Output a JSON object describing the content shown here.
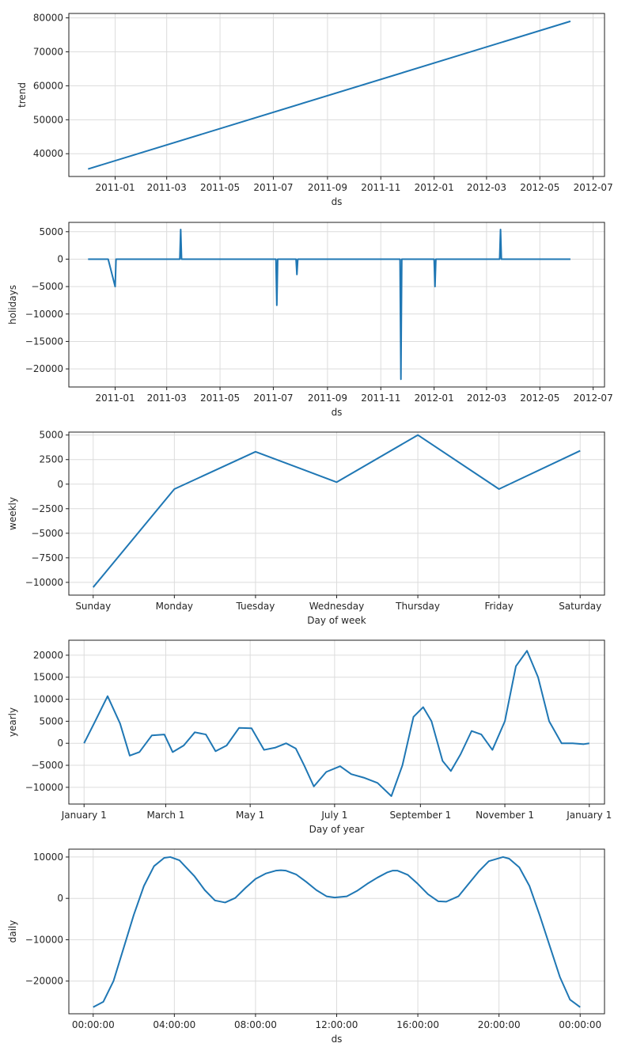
{
  "chart_data": [
    {
      "type": "line",
      "ylabel": "trend",
      "xlabel": "ds",
      "x_tick_labels": [
        "2011-01",
        "2011-03",
        "2011-05",
        "2011-07",
        "2011-09",
        "2011-11",
        "2012-01",
        "2012-03",
        "2012-05",
        "2012-07"
      ],
      "xlim": [
        "2010-11-09",
        "2012-07-14"
      ],
      "y_ticks": [
        40000,
        50000,
        60000,
        70000,
        80000
      ],
      "ylim": [
        33300,
        81300
      ],
      "series": [
        {
          "x": [
            "2010-12-01",
            "2012-06-05"
          ],
          "values": [
            35500,
            79000
          ]
        }
      ]
    },
    {
      "type": "line",
      "ylabel": "holidays",
      "xlabel": "ds",
      "x_tick_labels": [
        "2011-01",
        "2011-03",
        "2011-05",
        "2011-07",
        "2011-09",
        "2011-11",
        "2012-01",
        "2012-03",
        "2012-05",
        "2012-07"
      ],
      "xlim": [
        "2010-11-09",
        "2012-07-14"
      ],
      "y_ticks": [
        5000,
        0,
        -5000,
        -10000,
        -15000,
        -20000
      ],
      "ylim": [
        -23300,
        6700
      ],
      "series": [
        {
          "x": [
            "2010-12-01",
            "2010-12-24",
            "2011-01-01",
            "2011-01-02",
            "2011-03-16",
            "2011-03-17",
            "2011-03-18",
            "2011-07-04",
            "2011-07-05",
            "2011-07-06",
            "2011-07-27",
            "2011-07-28",
            "2011-07-29",
            "2011-11-23",
            "2011-11-24",
            "2011-11-25",
            "2012-01-01",
            "2012-01-02",
            "2012-01-03",
            "2012-03-16",
            "2012-03-17",
            "2012-03-18",
            "2012-06-05"
          ],
          "values": [
            0,
            0,
            -5000,
            0,
            0,
            5400,
            0,
            0,
            -8400,
            0,
            0,
            -2800,
            0,
            0,
            -21900,
            0,
            0,
            -5000,
            0,
            0,
            5400,
            0,
            0
          ]
        }
      ]
    },
    {
      "type": "line",
      "ylabel": "weekly",
      "xlabel": "Day of week",
      "categories": [
        "Sunday",
        "Monday",
        "Tuesday",
        "Wednesday",
        "Thursday",
        "Friday",
        "Saturday"
      ],
      "y_ticks": [
        5000,
        2500,
        0,
        -2500,
        -5000,
        -7500,
        -10000
      ],
      "ylim": [
        -11300,
        5300
      ],
      "series": [
        {
          "values": [
            -10500,
            -500,
            3300,
            200,
            5000,
            -500,
            3400
          ]
        }
      ]
    },
    {
      "type": "line",
      "ylabel": "yearly",
      "xlabel": "Day of year",
      "x_tick_labels": [
        "January 1",
        "March 1",
        "May 1",
        "July 1",
        "September 1",
        "November 1",
        "January 1"
      ],
      "xlim": [
        -11,
        376
      ],
      "y_ticks": [
        20000,
        15000,
        10000,
        5000,
        0,
        -5000,
        -10000
      ],
      "ylim": [
        -13800,
        23400
      ],
      "series": [
        {
          "x": [
            0,
            8,
            17,
            26,
            33,
            40,
            49,
            58,
            64,
            72,
            80,
            88,
            95,
            103,
            112,
            121,
            130,
            138,
            146,
            153,
            159,
            166,
            175,
            185,
            193,
            202,
            212,
            222,
            230,
            238,
            245,
            251,
            259,
            265,
            272,
            280,
            287,
            295,
            304,
            312,
            320,
            328,
            336,
            345,
            353,
            361,
            365
          ],
          "values": [
            0,
            5000,
            10700,
            4500,
            -2800,
            -2000,
            1800,
            2000,
            -2000,
            -500,
            2500,
            2000,
            -1800,
            -500,
            3500,
            3400,
            -1500,
            -1000,
            0,
            -1200,
            -5000,
            -9800,
            -6500,
            -5200,
            -7000,
            -7800,
            -9000,
            -12000,
            -5000,
            6000,
            8200,
            5000,
            -4000,
            -6300,
            -2500,
            2800,
            2000,
            -1500,
            5000,
            17500,
            21000,
            15000,
            5000,
            0,
            0,
            -200,
            0
          ]
        }
      ]
    },
    {
      "type": "line",
      "ylabel": "daily",
      "xlabel": "ds",
      "x_tick_labels": [
        "00:00:00",
        "04:00:00",
        "08:00:00",
        "12:00:00",
        "16:00:00",
        "20:00:00",
        "00:00:00"
      ],
      "xlim": [
        -1.2,
        25.2
      ],
      "y_ticks": [
        10000,
        0,
        -10000,
        -20000
      ],
      "ylim": [
        -27900,
        11900
      ],
      "series": [
        {
          "x": [
            0,
            0.5,
            1,
            1.5,
            2,
            2.5,
            3,
            3.5,
            3.8,
            4.25,
            5,
            5.5,
            6,
            6.5,
            7,
            7.5,
            8,
            8.5,
            9,
            9.25,
            9.5,
            10,
            10.5,
            11,
            11.5,
            11.9,
            12.5,
            13,
            13.5,
            14,
            14.5,
            14.75,
            15,
            15.5,
            16,
            16.5,
            17,
            17.4,
            18,
            18.5,
            19,
            19.5,
            20.2,
            20.5,
            21,
            21.5,
            22,
            22.5,
            23,
            23.5,
            24
          ],
          "values": [
            -26300,
            -25000,
            -20000,
            -12000,
            -4000,
            3000,
            7800,
            9800,
            10000,
            9200,
            5300,
            2000,
            -500,
            -1000,
            100,
            2500,
            4700,
            6000,
            6700,
            6800,
            6700,
            5800,
            4000,
            2000,
            500,
            200,
            500,
            1800,
            3500,
            5000,
            6300,
            6700,
            6700,
            5700,
            3500,
            1000,
            -700,
            -800,
            500,
            3500,
            6500,
            9000,
            10000,
            9600,
            7500,
            3000,
            -4000,
            -11500,
            -19000,
            -24500,
            -26300
          ]
        }
      ]
    }
  ],
  "colors": {
    "line": "#1f77b4"
  }
}
